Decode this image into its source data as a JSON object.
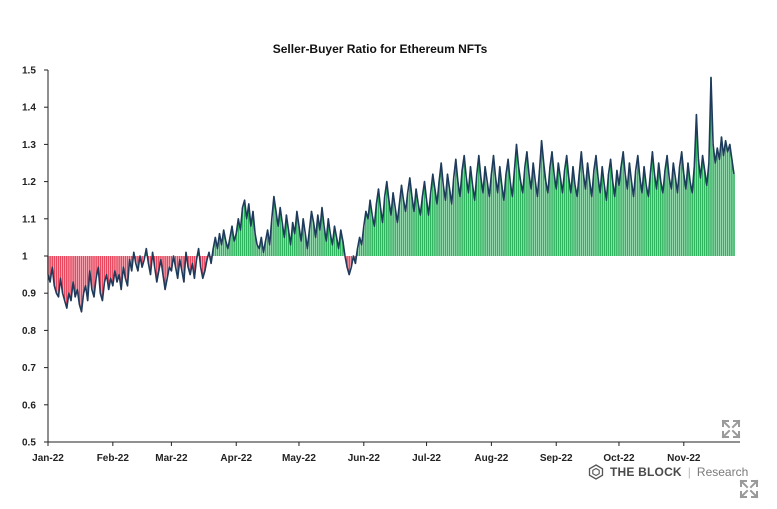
{
  "chart_data": {
    "type": "area",
    "title": "Seller-Buyer Ratio for Ethereum NFTs",
    "xlabel": "",
    "ylabel": "",
    "baseline": 1,
    "ylim": [
      0.5,
      1.5
    ],
    "yticks": [
      "0.5",
      "0.6",
      "0.7",
      "0.8",
      "0.9",
      "1",
      "1.1",
      "1.2",
      "1.3",
      "1.4",
      "1.5"
    ],
    "xticks": [
      "Jan-22",
      "Feb-22",
      "Mar-22",
      "Apr-22",
      "May-22",
      "Jun-22",
      "Jul-22",
      "Aug-22",
      "Sep-22",
      "Oct-22",
      "Nov-22"
    ],
    "colors": {
      "line": "#1f3b5c",
      "above": "#2fb35e",
      "below": "#e8475e"
    },
    "series": [
      {
        "x_month_anchors": [
          {
            "month": "Jan-22",
            "values": [
              0.95,
              0.93,
              0.97,
              0.92,
              0.9,
              0.89,
              0.94,
              0.9,
              0.88,
              0.86,
              0.9,
              0.88,
              0.93,
              0.89,
              0.91,
              0.87,
              0.85,
              0.9,
              0.92,
              0.88,
              0.96,
              0.91,
              0.89,
              0.94,
              0.97,
              0.9,
              0.88,
              0.93,
              0.95,
              0.91,
              0.94
            ]
          },
          {
            "month": "Feb-22",
            "values": [
              0.92,
              0.96,
              0.93,
              0.95,
              0.91,
              0.97,
              0.94,
              0.92,
              0.99,
              0.96,
              1.01,
              0.98,
              0.96,
              1.0,
              0.97,
              0.99,
              1.02,
              0.98,
              0.95,
              1.01,
              0.97,
              0.93,
              0.96,
              0.99,
              0.95,
              0.91,
              0.94,
              0.97
            ]
          },
          {
            "month": "Mar-22",
            "values": [
              0.96,
              1.0,
              0.97,
              0.94,
              0.99,
              0.96,
              0.93,
              1.01,
              0.97,
              0.95,
              0.98,
              0.94,
              0.99,
              1.02,
              0.97,
              0.94,
              0.96,
              0.99,
              1.01,
              0.98,
              1.02,
              1.05,
              1.02,
              1.06,
              1.03,
              1.07,
              1.04,
              1.02,
              1.05,
              1.08,
              1.04
            ]
          },
          {
            "month": "Apr-22",
            "values": [
              1.06,
              1.1,
              1.07,
              1.13,
              1.15,
              1.1,
              1.14,
              1.08,
              1.12,
              1.06,
              1.03,
              1.02,
              1.05,
              1.01,
              1.04,
              1.07,
              1.03,
              1.1,
              1.16,
              1.12,
              1.08,
              1.13,
              1.09,
              1.05,
              1.11,
              1.07,
              1.03,
              1.09,
              1.06,
              1.12
            ]
          },
          {
            "month": "May-22",
            "values": [
              1.08,
              1.04,
              1.1,
              1.06,
              1.02,
              1.07,
              1.12,
              1.09,
              1.05,
              1.11,
              1.07,
              1.13,
              1.08,
              1.04,
              1.1,
              1.06,
              1.03,
              1.08,
              1.05,
              1.02,
              1.07,
              1.04,
              1.0,
              0.97,
              0.95,
              0.97,
              1.0,
              0.98,
              1.02,
              1.05,
              1.03
            ]
          },
          {
            "month": "Jun-22",
            "values": [
              1.08,
              1.12,
              1.1,
              1.15,
              1.11,
              1.08,
              1.14,
              1.18,
              1.13,
              1.09,
              1.16,
              1.2,
              1.15,
              1.11,
              1.17,
              1.13,
              1.09,
              1.14,
              1.19,
              1.15,
              1.12,
              1.17,
              1.21,
              1.16,
              1.12,
              1.18,
              1.14,
              1.11,
              1.16,
              1.2
            ]
          },
          {
            "month": "Jul-22",
            "values": [
              1.15,
              1.11,
              1.17,
              1.22,
              1.18,
              1.14,
              1.2,
              1.25,
              1.19,
              1.15,
              1.22,
              1.18,
              1.14,
              1.21,
              1.26,
              1.2,
              1.16,
              1.23,
              1.27,
              1.21,
              1.17,
              1.24,
              1.19,
              1.15,
              1.22,
              1.27,
              1.21,
              1.17,
              1.24,
              1.2,
              1.16
            ]
          },
          {
            "month": "Aug-22",
            "values": [
              1.22,
              1.27,
              1.21,
              1.17,
              1.24,
              1.19,
              1.15,
              1.22,
              1.26,
              1.2,
              1.16,
              1.23,
              1.3,
              1.24,
              1.2,
              1.17,
              1.24,
              1.28,
              1.22,
              1.18,
              1.25,
              1.2,
              1.16,
              1.23,
              1.31,
              1.25,
              1.2,
              1.17,
              1.24,
              1.28,
              1.22
            ]
          },
          {
            "month": "Sep-22",
            "values": [
              1.18,
              1.25,
              1.21,
              1.17,
              1.23,
              1.27,
              1.21,
              1.17,
              1.24,
              1.19,
              1.16,
              1.22,
              1.28,
              1.22,
              1.18,
              1.25,
              1.2,
              1.16,
              1.23,
              1.27,
              1.21,
              1.17,
              1.24,
              1.19,
              1.15,
              1.22,
              1.26,
              1.2,
              1.16,
              1.23
            ]
          },
          {
            "month": "Oct-22",
            "values": [
              1.19,
              1.24,
              1.28,
              1.22,
              1.18,
              1.25,
              1.2,
              1.16,
              1.23,
              1.27,
              1.21,
              1.17,
              1.24,
              1.19,
              1.16,
              1.22,
              1.28,
              1.22,
              1.18,
              1.25,
              1.2,
              1.17,
              1.23,
              1.27,
              1.21,
              1.18,
              1.25,
              1.21,
              1.17,
              1.24,
              1.28
            ]
          },
          {
            "month": "Nov-22",
            "values": [
              1.22,
              1.18,
              1.25,
              1.2,
              1.17,
              1.24,
              1.38,
              1.26,
              1.21,
              1.27,
              1.23,
              1.19,
              1.25,
              1.48,
              1.3,
              1.25,
              1.29,
              1.26,
              1.32,
              1.27,
              1.31,
              1.28,
              1.3,
              1.26,
              1.22
            ]
          }
        ]
      }
    ]
  },
  "branding": {
    "name": "THE BLOCK",
    "separator": "|",
    "sub": "Research"
  },
  "icons": {
    "expand_1": "expand-icon",
    "expand_2": "expand-icon"
  }
}
